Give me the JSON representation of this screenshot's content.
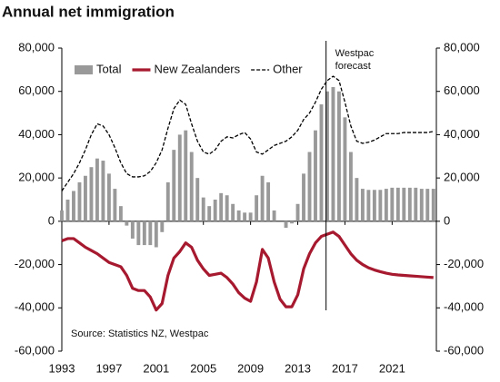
{
  "chart_data": {
    "type": "combo",
    "title": "Annual net immigration",
    "source": "Source: Statistics NZ, Westpac",
    "legend": "top-left",
    "annotations": [
      {
        "x": 2015.4,
        "label": [
          "Westpac",
          "forecast"
        ]
      }
    ],
    "xlim": [
      1993,
      2024.75
    ],
    "xticks": [
      1993,
      1997,
      2001,
      2005,
      2009,
      2013,
      2017,
      2021
    ],
    "ylim": [
      -60000,
      80000
    ],
    "yticks": [
      {
        "value": -60000,
        "label": "-60,000"
      },
      {
        "value": -40000,
        "label": "-40,000"
      },
      {
        "value": -20000,
        "label": "-20,000"
      },
      0,
      {
        "value": 20000,
        "label": "20,000"
      },
      {
        "value": 40000,
        "label": "40,000"
      },
      {
        "value": 60000,
        "label": "60,000"
      },
      {
        "value": 80000,
        "label": "80,000"
      }
    ],
    "y2lim": [
      -60000,
      80000
    ],
    "y2ticks": [
      {
        "value": -60000,
        "label": "-60,000"
      },
      {
        "value": -40000,
        "label": "-40,000"
      },
      {
        "value": -20000,
        "label": "-20,000"
      },
      0,
      {
        "value": 20000,
        "label": "20,000"
      },
      {
        "value": 40000,
        "label": "40,000"
      },
      {
        "value": 60000,
        "label": "60,000"
      },
      {
        "value": 80000,
        "label": "80,000"
      }
    ],
    "x": [
      1993,
      1993.5,
      1994,
      1994.5,
      1995,
      1995.5,
      1996,
      1996.5,
      1997,
      1997.5,
      1998,
      1998.5,
      1999,
      1999.5,
      2000,
      2000.5,
      2001,
      2001.5,
      2002,
      2002.5,
      2003,
      2003.5,
      2004,
      2004.5,
      2005,
      2005.5,
      2006,
      2006.5,
      2007,
      2007.5,
      2008,
      2008.5,
      2009,
      2009.5,
      2010,
      2010.5,
      2011,
      2011.5,
      2012,
      2012.5,
      2013,
      2013.5,
      2014,
      2014.5,
      2015,
      2015.5,
      2016,
      2016.5,
      2017,
      2017.5,
      2018,
      2018.5,
      2019,
      2019.5,
      2020,
      2020.5,
      2021,
      2021.5,
      2022,
      2022.5,
      2023,
      2023.5,
      2024,
      2024.5
    ],
    "series": [
      {
        "name": "Total",
        "type": "bar",
        "color": "#999999",
        "values": [
          5000,
          10000,
          14000,
          18000,
          21000,
          25000,
          29000,
          28000,
          22000,
          15000,
          7000,
          -2000,
          -8000,
          -11000,
          -11000,
          -11000,
          -12000,
          -5000,
          18000,
          33000,
          40000,
          42000,
          32000,
          20000,
          11000,
          7000,
          10000,
          13000,
          12000,
          8000,
          5000,
          4000,
          4000,
          12000,
          21000,
          18000,
          5000,
          0,
          -3000,
          -1000,
          8000,
          22000,
          32000,
          42000,
          54000,
          60000,
          62000,
          60000,
          48000,
          32000,
          20000,
          15000,
          14500,
          14500,
          14500,
          15000,
          15500,
          15500,
          15500,
          15500,
          15500,
          15000,
          15000,
          15000
        ]
      },
      {
        "name": "New Zealanders",
        "type": "line",
        "color": "#a6192e",
        "line_style": "solid",
        "values": [
          -9000,
          -8000,
          -8000,
          -10000,
          -12000,
          -13500,
          -15000,
          -17000,
          -19000,
          -20000,
          -21000,
          -25000,
          -31000,
          -32000,
          -32000,
          -35000,
          -41000,
          -38000,
          -25000,
          -17000,
          -14000,
          -10000,
          -12000,
          -18000,
          -22000,
          -25000,
          -24500,
          -24000,
          -26000,
          -29000,
          -33000,
          -35500,
          -37000,
          -28000,
          -13000,
          -17000,
          -28000,
          -36000,
          -39500,
          -39500,
          -34000,
          -22000,
          -15000,
          -10000,
          -7000,
          -6000,
          -5000,
          -7000,
          -11000,
          -15000,
          -18000,
          -20000,
          -21500,
          -22500,
          -23300,
          -24000,
          -24500,
          -24800,
          -25000,
          -25200,
          -25400,
          -25600,
          -25800,
          -26000
        ]
      },
      {
        "name": "Other",
        "type": "line",
        "color": "#000000",
        "line_style": "dashed",
        "values": [
          14000,
          18000,
          22000,
          27000,
          33000,
          40000,
          45000,
          44000,
          40000,
          34000,
          27000,
          22000,
          20500,
          20500,
          21000,
          23000,
          27000,
          33000,
          43000,
          52000,
          56000,
          54000,
          45000,
          37000,
          32000,
          31000,
          33000,
          37000,
          39000,
          38500,
          40000,
          41000,
          38000,
          32000,
          31000,
          33000,
          35000,
          36000,
          37000,
          39000,
          42000,
          47000,
          50000,
          55000,
          61000,
          65000,
          67000,
          65000,
          55000,
          44000,
          37000,
          36000,
          36500,
          37500,
          39000,
          40500,
          40500,
          40500,
          41000,
          41000,
          41000,
          41000,
          41000,
          41500
        ]
      }
    ]
  }
}
